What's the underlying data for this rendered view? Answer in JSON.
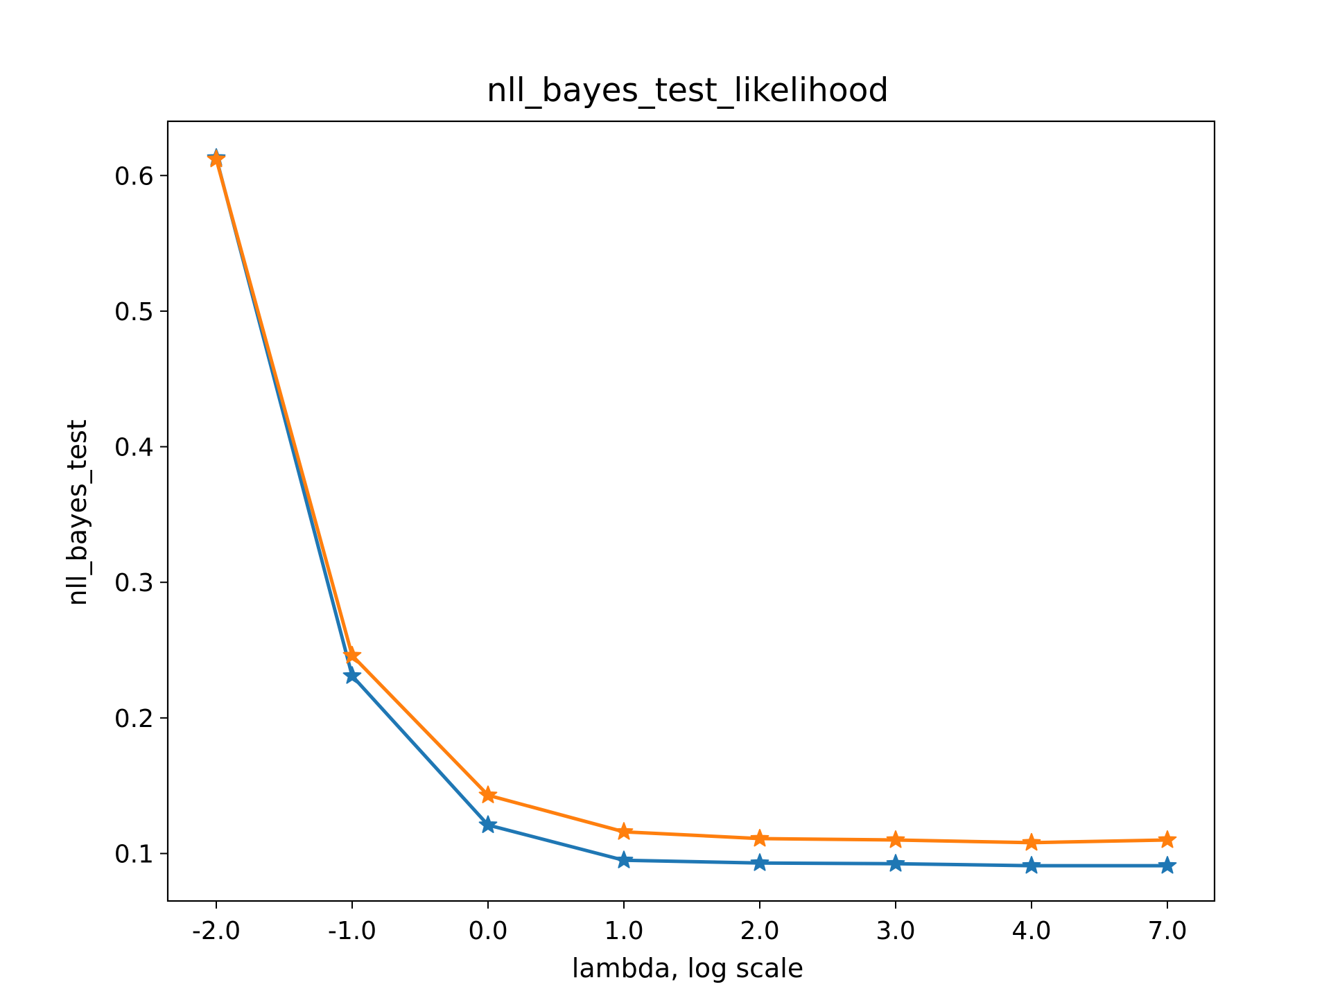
{
  "chart_data": {
    "type": "line",
    "title": "nll_bayes_test_likelihood",
    "xlabel": "lambda, log scale",
    "ylabel": "nll_bayes_test",
    "categories": [
      "-2.0",
      "-1.0",
      "0.0",
      "1.0",
      "2.0",
      "3.0",
      "4.0",
      "7.0"
    ],
    "y_ticks": [
      "0.1",
      "0.2",
      "0.3",
      "0.4",
      "0.5",
      "0.6"
    ],
    "ylim": [
      0.065,
      0.64
    ],
    "grid": false,
    "marker": "star",
    "series": [
      {
        "color": "#1f77b4",
        "values": [
          0.613,
          0.231,
          0.121,
          0.095,
          0.093,
          0.0925,
          0.091,
          0.091
        ]
      },
      {
        "color": "#ff7f0e",
        "values": [
          0.612,
          0.246,
          0.143,
          0.116,
          0.111,
          0.11,
          0.108,
          0.11
        ]
      }
    ]
  }
}
